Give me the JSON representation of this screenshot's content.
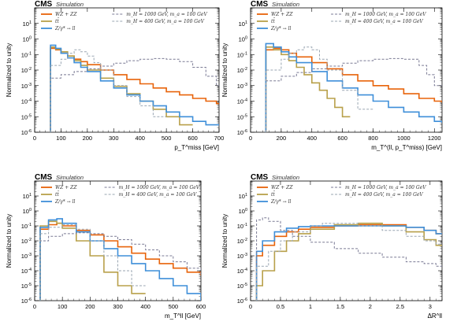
{
  "chart_data": [
    {
      "type": "line",
      "cms_label": "CMS",
      "sim_label": "Simulation",
      "xlabel": "p_T^miss [GeV]",
      "ylabel": "Normalized to unity",
      "xlim": [
        0,
        700
      ],
      "ylim_log10": [
        -6,
        2
      ],
      "xticks": [
        0,
        100,
        200,
        300,
        400,
        500,
        600,
        700
      ],
      "yticks": [
        "10^-6",
        "10^-5",
        "10^-4",
        "10^-3",
        "10^-2",
        "10^-1",
        "10^0",
        "10^1"
      ],
      "series": [
        {
          "name": "WZ + ZZ",
          "color": "#e8630a",
          "style": "solid",
          "x": [
            60,
            80,
            100,
            125,
            150,
            175,
            200,
            250,
            300,
            350,
            400,
            450,
            500,
            550,
            600,
            650,
            690
          ],
          "y": [
            0.25,
            0.2,
            0.12,
            0.08,
            0.05,
            0.035,
            0.022,
            0.01,
            0.005,
            0.0025,
            0.0013,
            0.0007,
            0.0004,
            0.00025,
            0.00015,
            0.0001,
            7e-05
          ]
        },
        {
          "name": "tt̄",
          "color": "#b8a04a",
          "style": "solid",
          "x": [
            60,
            80,
            100,
            125,
            150,
            175,
            200,
            250,
            300,
            350,
            400,
            450,
            500,
            550
          ],
          "y": [
            0.3,
            0.22,
            0.15,
            0.08,
            0.04,
            0.02,
            0.01,
            0.003,
            0.0009,
            0.0003,
            0.0001,
            3e-05,
            1e-05,
            3e-06
          ]
        },
        {
          "name": "Z/γ* → ll",
          "color": "#3f8fd9",
          "style": "solid",
          "x": [
            60,
            80,
            100,
            125,
            150,
            175,
            200,
            250,
            300,
            350,
            400,
            450,
            500,
            550,
            600,
            650
          ],
          "y": [
            0.4,
            0.25,
            0.12,
            0.06,
            0.03,
            0.015,
            0.008,
            0.002,
            0.0007,
            0.00025,
            0.0001,
            5e-05,
            2e-05,
            1e-05,
            5e-06,
            3e-06
          ]
        },
        {
          "name": "m_H = 1000 GeV, m_a = 100 GeV",
          "color": "#7a7a94",
          "style": "dashed",
          "x": [
            60,
            100,
            150,
            200,
            250,
            300,
            350,
            400,
            450,
            500,
            550,
            600,
            650,
            690
          ],
          "y": [
            0.003,
            0.005,
            0.008,
            0.012,
            0.018,
            0.028,
            0.04,
            0.05,
            0.055,
            0.05,
            0.035,
            0.015,
            0.004,
            0.001
          ]
        },
        {
          "name": "m_H = 400 GeV, m_a = 100 GeV",
          "color": "#9aa6b2",
          "style": "dashed",
          "x": [
            60,
            100,
            125,
            150,
            175,
            200,
            225,
            250,
            300,
            350,
            400,
            450
          ],
          "y": [
            0.02,
            0.05,
            0.12,
            0.2,
            0.15,
            0.08,
            0.03,
            0.01,
            0.001,
            0.0002,
            5e-05,
            1e-05
          ]
        }
      ]
    },
    {
      "type": "line",
      "cms_label": "CMS",
      "sim_label": "Simulation",
      "xlabel": "m_T^(ll, p_T^miss) [GeV]",
      "ylabel": "Normalized to unity",
      "xlim": [
        0,
        1250
      ],
      "ylim_log10": [
        -6,
        2
      ],
      "xticks": [
        0,
        200,
        400,
        600,
        800,
        1000,
        1200
      ],
      "yticks": [
        "10^-6",
        "10^-5",
        "10^-4",
        "10^-3",
        "10^-2",
        "10^-1",
        "10^0",
        "10^1"
      ],
      "series": [
        {
          "name": "WZ + ZZ",
          "color": "#e8630a",
          "style": "solid",
          "x": [
            100,
            150,
            200,
            250,
            300,
            400,
            500,
            600,
            700,
            800,
            900,
            1000,
            1100,
            1200,
            1250
          ],
          "y": [
            0.2,
            0.25,
            0.2,
            0.12,
            0.07,
            0.03,
            0.012,
            0.005,
            0.002,
            0.001,
            0.0006,
            0.0003,
            0.00015,
            0.0001,
            8e-05
          ]
        },
        {
          "name": "tt̄",
          "color": "#b8a04a",
          "style": "solid",
          "x": [
            100,
            150,
            200,
            250,
            300,
            350,
            400,
            450,
            500,
            550,
            600
          ],
          "y": [
            0.3,
            0.2,
            0.1,
            0.04,
            0.015,
            0.005,
            0.0015,
            0.0005,
            0.00015,
            4e-05,
            1e-05
          ]
        },
        {
          "name": "Z/γ* → ll",
          "color": "#3f8fd9",
          "style": "solid",
          "x": [
            100,
            150,
            200,
            250,
            300,
            400,
            500,
            600,
            700,
            800,
            900,
            1000,
            1100,
            1200,
            1250
          ],
          "y": [
            0.5,
            0.3,
            0.15,
            0.07,
            0.03,
            0.008,
            0.002,
            0.0007,
            0.00025,
            0.0001,
            4e-05,
            2e-05,
            1e-05,
            5e-06,
            4e-06
          ]
        },
        {
          "name": "m_H = 1000 GeV, m_a = 100 GeV",
          "color": "#7a7a94",
          "style": "dashed",
          "x": [
            100,
            200,
            300,
            400,
            500,
            600,
            700,
            800,
            900,
            1000,
            1100,
            1150,
            1200
          ],
          "y": [
            0.002,
            0.004,
            0.007,
            0.012,
            0.018,
            0.028,
            0.04,
            0.05,
            0.055,
            0.05,
            0.02,
            0.005,
            0.001
          ]
        },
        {
          "name": "m_H = 400 GeV, m_a = 100 GeV",
          "color": "#9aa6b2",
          "style": "dashed",
          "x": [
            100,
            200,
            250,
            300,
            350,
            400,
            450,
            500,
            600,
            700
          ],
          "y": [
            0.01,
            0.05,
            0.12,
            0.2,
            0.3,
            0.2,
            0.05,
            0.01,
            0.0005,
            3e-05
          ]
        }
      ]
    },
    {
      "type": "line",
      "cms_label": "CMS",
      "sim_label": "Simulation",
      "xlabel": "m_T^ll [GeV]",
      "ylabel": "Normalized to unity",
      "xlim": [
        0,
        600
      ],
      "ylim_log10": [
        -6,
        2
      ],
      "xticks": [
        0,
        100,
        200,
        300,
        400,
        500,
        600
      ],
      "yticks": [
        "10^-6",
        "10^-5",
        "10^-4",
        "10^-3",
        "10^-2",
        "10^-1",
        "10^0",
        "10^1"
      ],
      "series": [
        {
          "name": "WZ + ZZ",
          "color": "#e8630a",
          "style": "solid",
          "x": [
            20,
            50,
            80,
            100,
            150,
            200,
            250,
            300,
            350,
            400,
            450,
            500,
            550,
            600
          ],
          "y": [
            0.06,
            0.12,
            0.15,
            0.1,
            0.05,
            0.025,
            0.01,
            0.004,
            0.0015,
            0.0006,
            0.0003,
            0.00015,
            8e-05,
            5e-05
          ]
        },
        {
          "name": "tt̄",
          "color": "#b8a04a",
          "style": "solid",
          "x": [
            20,
            50,
            80,
            100,
            150,
            200,
            250,
            300,
            350
          ],
          "y": [
            0.1,
            0.2,
            0.15,
            0.07,
            0.01,
            0.001,
            8e-05,
            1e-05,
            3e-06
          ]
        },
        {
          "name": "Z/γ* → ll",
          "color": "#3f8fd9",
          "style": "solid",
          "x": [
            20,
            50,
            80,
            100,
            150,
            200,
            250,
            300,
            350,
            400,
            450,
            500,
            550,
            600
          ],
          "y": [
            0.08,
            0.25,
            0.3,
            0.15,
            0.04,
            0.01,
            0.003,
            0.001,
            0.0003,
            0.0001,
            3e-05,
            1e-05,
            3e-06,
            1e-06
          ]
        },
        {
          "name": "m_H = 1000 GeV, m_a = 100 GeV",
          "color": "#7a7a94",
          "style": "dashed",
          "x": [
            20,
            50,
            100,
            150,
            200,
            250,
            300,
            350,
            400,
            450,
            500,
            550,
            600
          ],
          "y": [
            0.01,
            0.02,
            0.03,
            0.035,
            0.03,
            0.02,
            0.012,
            0.006,
            0.0025,
            0.001,
            0.0004,
            0.00015,
            5e-05
          ]
        },
        {
          "name": "m_H = 400 GeV, m_a = 100 GeV",
          "color": "#9aa6b2",
          "style": "dashed",
          "x": [
            20,
            50,
            100,
            150,
            200,
            250,
            300,
            350
          ],
          "y": [
            0.03,
            0.08,
            0.12,
            0.06,
            0.01,
            0.001,
            0.0001,
            1e-05
          ]
        }
      ]
    },
    {
      "type": "line",
      "cms_label": "CMS",
      "sim_label": "Simulation",
      "xlabel": "ΔR^ll",
      "ylabel": "Normalized to unity",
      "xlim": [
        0,
        3.2
      ],
      "ylim_log10": [
        -6,
        2
      ],
      "xticks": [
        0,
        0.5,
        1,
        1.5,
        2,
        2.5,
        3
      ],
      "yticks": [
        "10^-6",
        "10^-5",
        "10^-4",
        "10^-3",
        "10^-2",
        "10^-1",
        "10^0",
        "10^1"
      ],
      "series": [
        {
          "name": "WZ + ZZ",
          "color": "#e8630a",
          "style": "solid",
          "x": [
            0.1,
            0.2,
            0.4,
            0.6,
            0.8,
            1.0,
            1.4,
            1.8,
            2.2,
            2.6,
            2.9,
            3.1
          ],
          "y": [
            0.001,
            0.005,
            0.02,
            0.04,
            0.06,
            0.08,
            0.1,
            0.12,
            0.12,
            0.08,
            0.05,
            0.03
          ]
        },
        {
          "name": "tt̄",
          "color": "#b8a04a",
          "style": "solid",
          "x": [
            0.1,
            0.2,
            0.4,
            0.6,
            0.8,
            1.0,
            1.4,
            1.8,
            2.2,
            2.6,
            2.9,
            3.1
          ],
          "y": [
            1e-05,
            0.0001,
            0.002,
            0.01,
            0.03,
            0.06,
            0.12,
            0.15,
            0.1,
            0.04,
            0.012,
            0.005
          ]
        },
        {
          "name": "Z/γ* → ll",
          "color": "#3f8fd9",
          "style": "solid",
          "x": [
            0.1,
            0.2,
            0.4,
            0.6,
            0.8,
            1.0,
            1.4,
            1.8,
            2.2,
            2.6,
            2.9,
            3.1
          ],
          "y": [
            0.002,
            0.01,
            0.04,
            0.07,
            0.09,
            0.1,
            0.1,
            0.1,
            0.1,
            0.08,
            0.05,
            0.03
          ]
        },
        {
          "name": "m_H = 1000 GeV, m_a = 100 GeV",
          "color": "#7a7a94",
          "style": "dashed",
          "x": [
            0.1,
            0.2,
            0.3,
            0.5,
            0.7,
            1.0,
            1.4,
            1.8,
            2.2,
            2.6,
            2.9,
            3.1
          ],
          "y": [
            0.25,
            0.35,
            0.2,
            0.05,
            0.02,
            0.008,
            0.003,
            0.0015,
            0.0008,
            0.0004,
            0.0003,
            0.0002
          ]
        },
        {
          "name": "m_H = 400 GeV, m_a = 100 GeV",
          "color": "#9aa6b2",
          "style": "dashed",
          "x": [
            0.1,
            0.3,
            0.5,
            0.7,
            1.0,
            1.2,
            1.5,
            1.8,
            2.2,
            2.6,
            2.9,
            3.1
          ],
          "y": [
            0.0002,
            0.002,
            0.01,
            0.04,
            0.1,
            0.15,
            0.15,
            0.1,
            0.05,
            0.02,
            0.01,
            0.006
          ]
        }
      ]
    }
  ]
}
